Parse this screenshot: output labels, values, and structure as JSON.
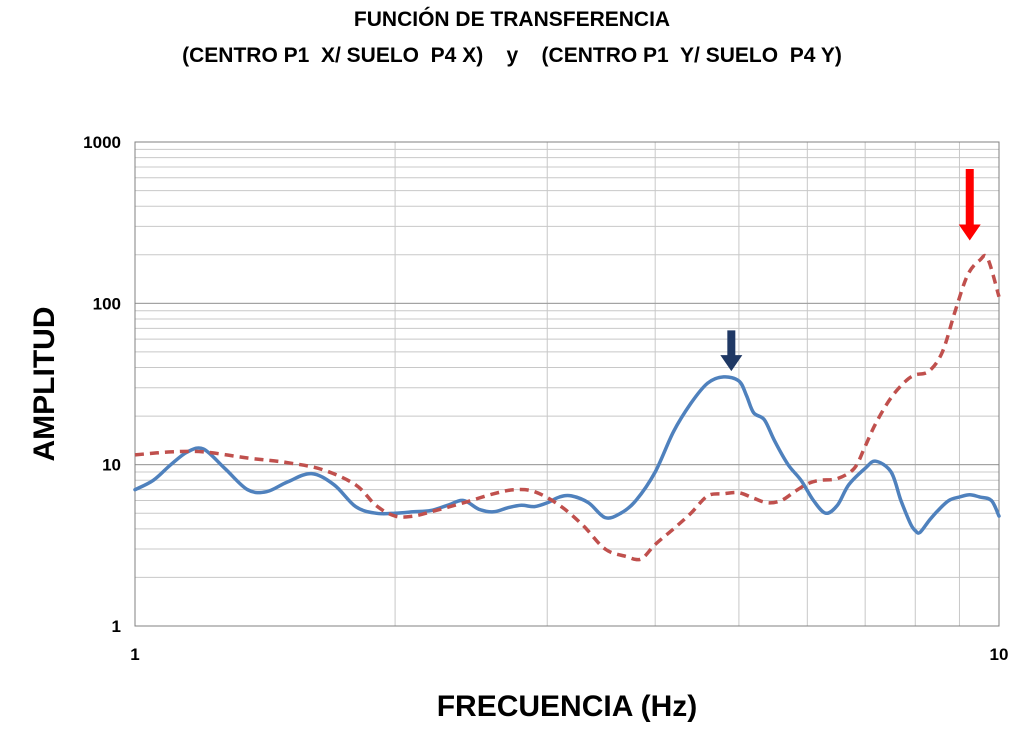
{
  "chart_data": {
    "type": "line",
    "title": "FUNCIÓN DE TRANSFERENCIA",
    "subtitle": "(CENTRO P1  X/ SUELO  P4 X)    y    (CENTRO P1  Y/ SUELO  P4 Y)",
    "xlabel": "FRECUENCIA (Hz)",
    "ylabel": "AMPLITUD",
    "xscale": "log",
    "yscale": "log",
    "xlim": [
      1,
      10
    ],
    "ylim": [
      1,
      1000
    ],
    "x_ticks": [
      1,
      10
    ],
    "x_tick_labels": [
      "1",
      "10"
    ],
    "y_ticks": [
      1,
      10,
      100,
      1000
    ],
    "y_tick_labels": [
      "1",
      "10",
      "100",
      "1000"
    ],
    "grid": true,
    "legend": "none",
    "series": [
      {
        "style": "solid",
        "color": "#4f81bd",
        "x": [
          1.0,
          1.05,
          1.1,
          1.15,
          1.2,
          1.27,
          1.35,
          1.42,
          1.5,
          1.6,
          1.7,
          1.8,
          1.9,
          2.0,
          2.1,
          2.2,
          2.3,
          2.4,
          2.5,
          2.6,
          2.7,
          2.8,
          2.9,
          3.0,
          3.1,
          3.2,
          3.35,
          3.5,
          3.65,
          3.8,
          4.0,
          4.2,
          4.4,
          4.6,
          4.8,
          5.0,
          5.1,
          5.2,
          5.35,
          5.5,
          5.7,
          5.9,
          6.1,
          6.3,
          6.5,
          6.7,
          7.0,
          7.2,
          7.5,
          7.7,
          7.9,
          8.0,
          8.1,
          8.3,
          8.5,
          8.75,
          9.0,
          9.25,
          9.5,
          9.8,
          10.0
        ],
        "y": [
          7.0,
          8.0,
          10.0,
          12.0,
          12.5,
          9.5,
          7.0,
          6.8,
          7.8,
          8.8,
          7.5,
          5.5,
          5.0,
          5.0,
          5.1,
          5.2,
          5.6,
          6.0,
          5.3,
          5.1,
          5.4,
          5.6,
          5.5,
          5.8,
          6.3,
          6.4,
          5.8,
          4.7,
          5.0,
          6.0,
          9.0,
          16.0,
          24.0,
          32.0,
          35.0,
          33.0,
          27.0,
          21.0,
          19.0,
          14.0,
          10.0,
          8.0,
          6.0,
          5.0,
          5.6,
          7.5,
          9.5,
          10.5,
          9.0,
          6.0,
          4.3,
          3.9,
          3.8,
          4.5,
          5.2,
          6.0,
          6.3,
          6.5,
          6.3,
          6.0,
          4.8
        ]
      },
      {
        "style": "dashed",
        "color": "#c0504d",
        "x": [
          1.0,
          1.1,
          1.2,
          1.35,
          1.5,
          1.65,
          1.8,
          1.9,
          2.0,
          2.1,
          2.2,
          2.4,
          2.6,
          2.75,
          2.9,
          3.1,
          3.3,
          3.5,
          3.7,
          3.85,
          4.0,
          4.2,
          4.4,
          4.6,
          4.8,
          5.0,
          5.2,
          5.4,
          5.6,
          5.8,
          6.0,
          6.2,
          6.5,
          6.8,
          7.0,
          7.2,
          7.5,
          7.8,
          8.0,
          8.3,
          8.6,
          8.9,
          9.2,
          9.5,
          9.7,
          10.0
        ],
        "y": [
          11.5,
          12.0,
          12.0,
          11.0,
          10.3,
          9.3,
          7.5,
          5.6,
          4.8,
          4.8,
          5.1,
          5.8,
          6.6,
          7.0,
          6.8,
          5.6,
          4.2,
          3.0,
          2.7,
          2.6,
          3.2,
          4.0,
          5.0,
          6.4,
          6.6,
          6.7,
          6.2,
          5.8,
          6.0,
          6.8,
          7.6,
          8.0,
          8.2,
          9.5,
          13.0,
          18.0,
          26.0,
          33.0,
          36.0,
          38.0,
          50.0,
          90.0,
          150.0,
          185.0,
          190.0,
          110.0
        ]
      }
    ],
    "annotations": [
      {
        "type": "arrow-down",
        "color": "#1f3864",
        "x": 4.9,
        "y_top": 68,
        "y_tip": 38
      },
      {
        "type": "arrow-down",
        "color": "#ff0000",
        "x": 9.25,
        "y_top": 680,
        "y_tip": 245
      }
    ]
  }
}
